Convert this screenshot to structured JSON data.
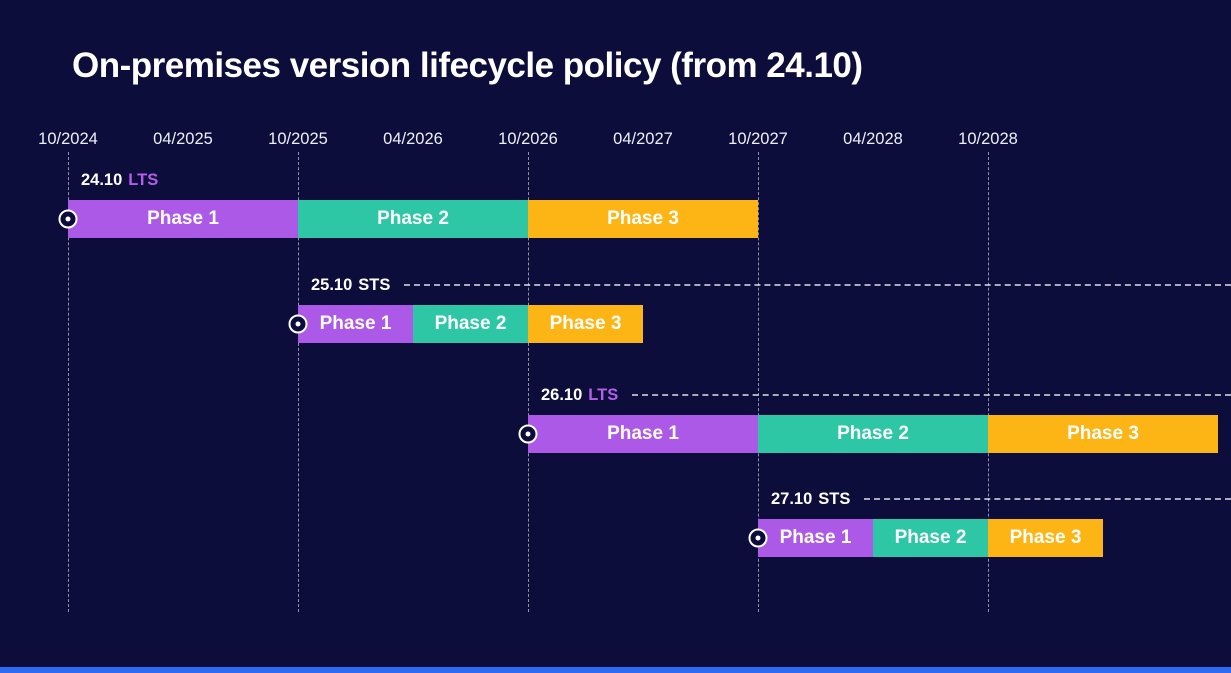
{
  "title": "On-premises version lifecycle policy (from 24.10)",
  "colors": {
    "background": "#0d0d3c",
    "accent_blue": "#2e6bf2",
    "text": "#ffffff"
  },
  "chart_data": {
    "type": "gantt",
    "title": "On-premises version lifecycle policy (from 24.10)",
    "x_ticks": [
      "10/2024",
      "04/2025",
      "10/2025",
      "04/2026",
      "10/2026",
      "04/2027",
      "10/2027",
      "04/2028",
      "10/2028"
    ],
    "gridline_ticks": [
      "10/2024",
      "10/2025",
      "10/2026",
      "10/2027",
      "10/2028"
    ],
    "phase_colors": {
      "Phase 1": "#ad59e8",
      "Phase 2": "#2ec7a5",
      "Phase 3": "#fdb515"
    },
    "channel_colors": {
      "LTS": "#b45fe8",
      "STS": "#ffffff"
    },
    "legend_note": "",
    "rows": [
      {
        "version": "24.10",
        "channel": "LTS",
        "start": "10/2024",
        "dashed_line": false,
        "phases": [
          {
            "label": "Phase 1",
            "months": 12
          },
          {
            "label": "Phase 2",
            "months": 12
          },
          {
            "label": "Phase 3",
            "months": 12
          }
        ]
      },
      {
        "version": "25.10",
        "channel": "STS",
        "start": "10/2025",
        "dashed_line": true,
        "phases": [
          {
            "label": "Phase 1",
            "months": 6
          },
          {
            "label": "Phase 2",
            "months": 6
          },
          {
            "label": "Phase 3",
            "months": 6
          }
        ]
      },
      {
        "version": "26.10",
        "channel": "LTS",
        "start": "10/2026",
        "dashed_line": true,
        "phases": [
          {
            "label": "Phase 1",
            "months": 12
          },
          {
            "label": "Phase 2",
            "months": 12
          },
          {
            "label": "Phase 3",
            "months": 12
          }
        ]
      },
      {
        "version": "27.10",
        "channel": "STS",
        "start": "10/2027",
        "dashed_line": true,
        "phases": [
          {
            "label": "Phase 1",
            "months": 6
          },
          {
            "label": "Phase 2",
            "months": 6
          },
          {
            "label": "Phase 3",
            "months": 6
          }
        ]
      }
    ]
  }
}
